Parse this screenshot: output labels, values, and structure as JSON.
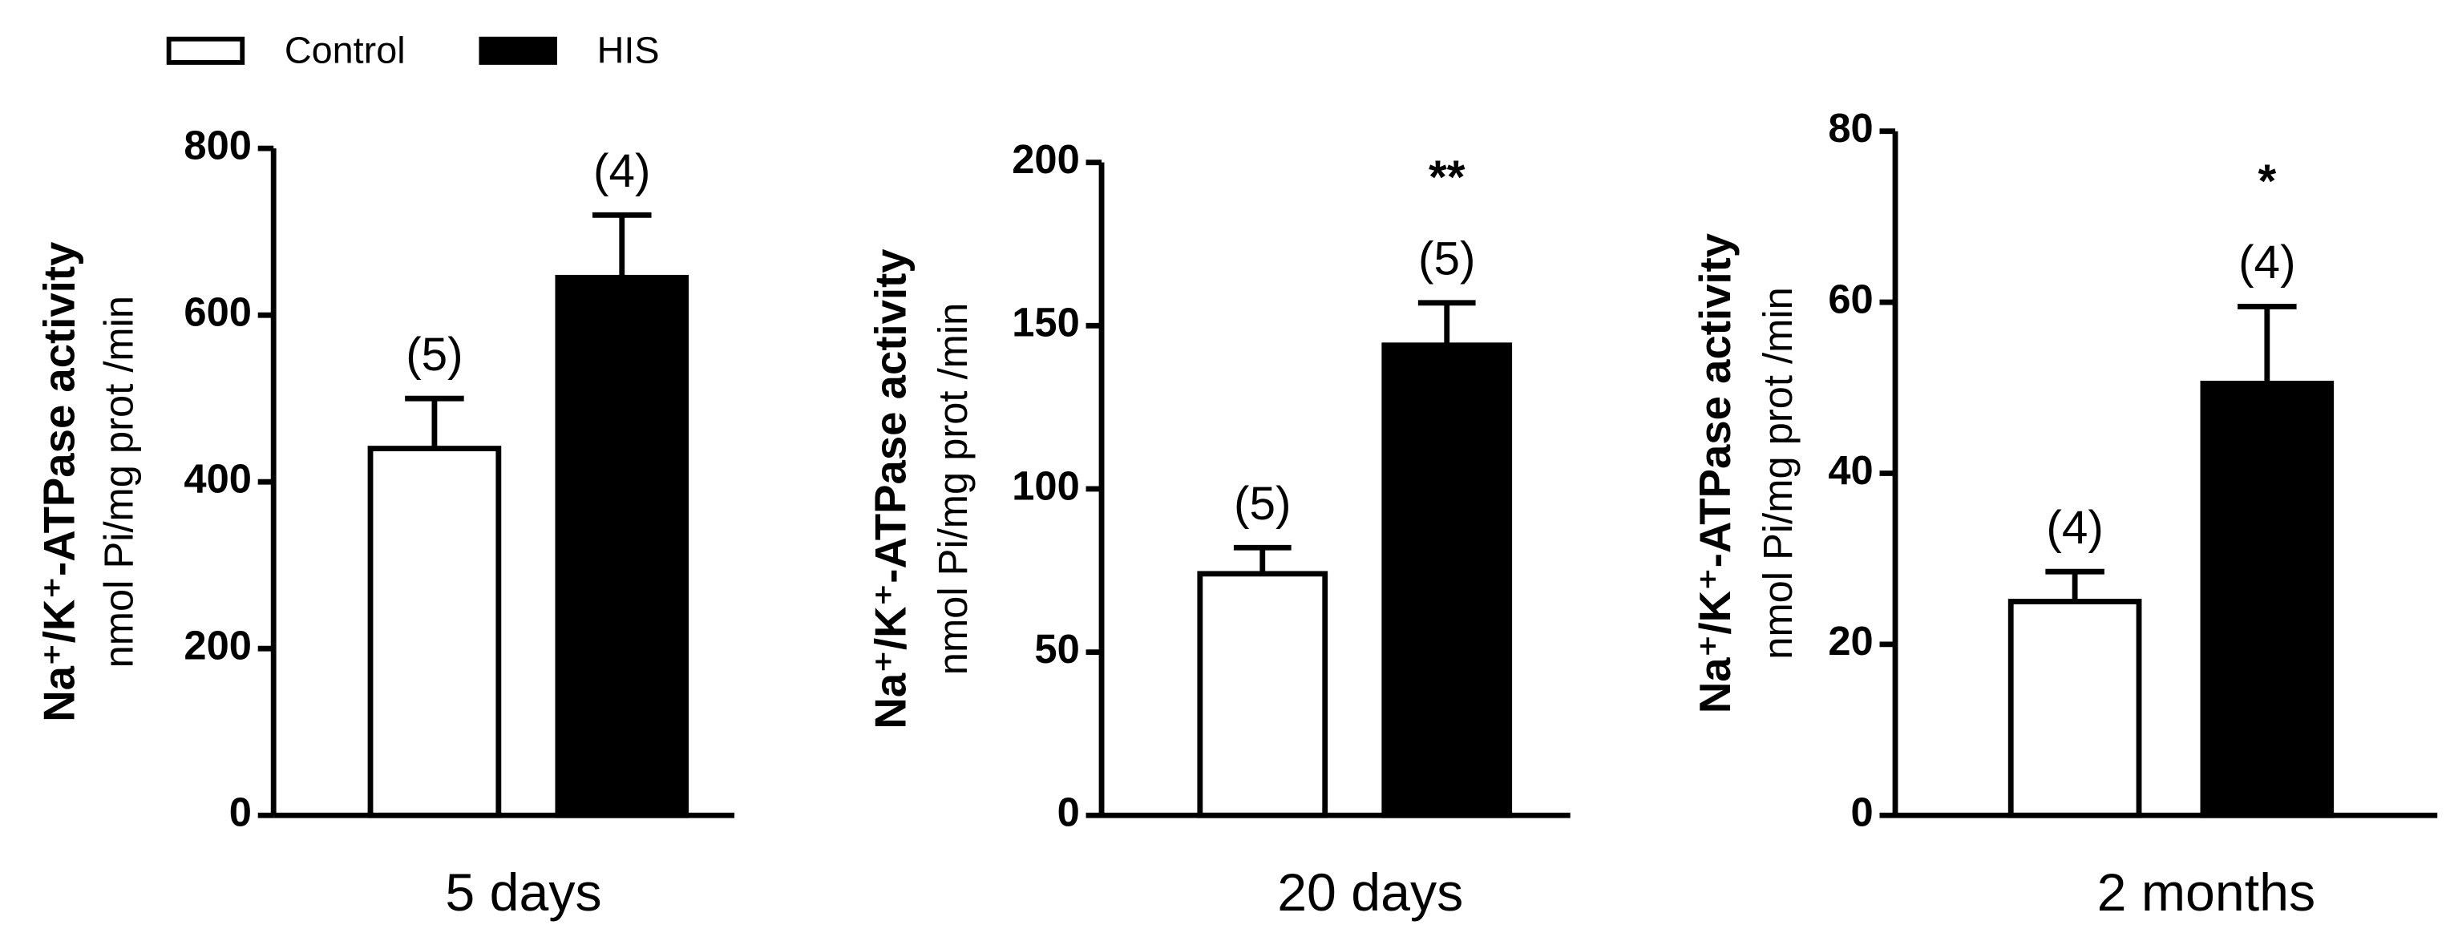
{
  "legend": [
    {
      "name": "Control",
      "color": "#ffffff"
    },
    {
      "name": "HIS",
      "color": "#000000"
    }
  ],
  "chart_data": [
    {
      "type": "bar",
      "ylabel": "Na⁺/K⁺-ATPase activity",
      "ylabel_units": "nmol Pi/mg prot /min",
      "categories": [
        "5 days"
      ],
      "ylim": [
        0,
        800
      ],
      "yticks": [
        0,
        200,
        400,
        600,
        800
      ],
      "series": [
        {
          "color": "#ffffff",
          "values": [
            440
          ],
          "errors": [
            60
          ],
          "labels": [
            "(5)"
          ]
        },
        {
          "color": "#000000",
          "values": [
            645
          ],
          "errors": [
            75
          ],
          "labels": [
            "(4)"
          ]
        }
      ]
    },
    {
      "type": "bar",
      "ylabel": "Na⁺/K⁺-ATPase activity",
      "ylabel_units": "nmol Pi/mg prot /min",
      "categories": [
        "20 days"
      ],
      "ylim": [
        0,
        200
      ],
      "yticks": [
        0,
        50,
        100,
        150,
        200
      ],
      "annotation": "**",
      "series": [
        {
          "color": "#ffffff",
          "values": [
            74
          ],
          "errors": [
            8
          ],
          "labels": [
            "(5)"
          ]
        },
        {
          "color": "#000000",
          "values": [
            144
          ],
          "errors": [
            13
          ],
          "labels": [
            "(5)"
          ]
        }
      ]
    },
    {
      "type": "bar",
      "ylabel": "Na⁺/K⁺-ATPase activity",
      "ylabel_units": "nmol Pi/mg prot /min",
      "categories": [
        "2 months"
      ],
      "ylim": [
        0,
        80
      ],
      "yticks": [
        0,
        20,
        40,
        60,
        80
      ],
      "annotation": "*",
      "series": [
        {
          "color": "#ffffff",
          "values": [
            25
          ],
          "errors": [
            3.5
          ],
          "labels": [
            "(4)"
          ]
        },
        {
          "color": "#000000",
          "values": [
            50.5
          ],
          "errors": [
            9
          ],
          "labels": [
            "(4)"
          ]
        }
      ]
    }
  ]
}
